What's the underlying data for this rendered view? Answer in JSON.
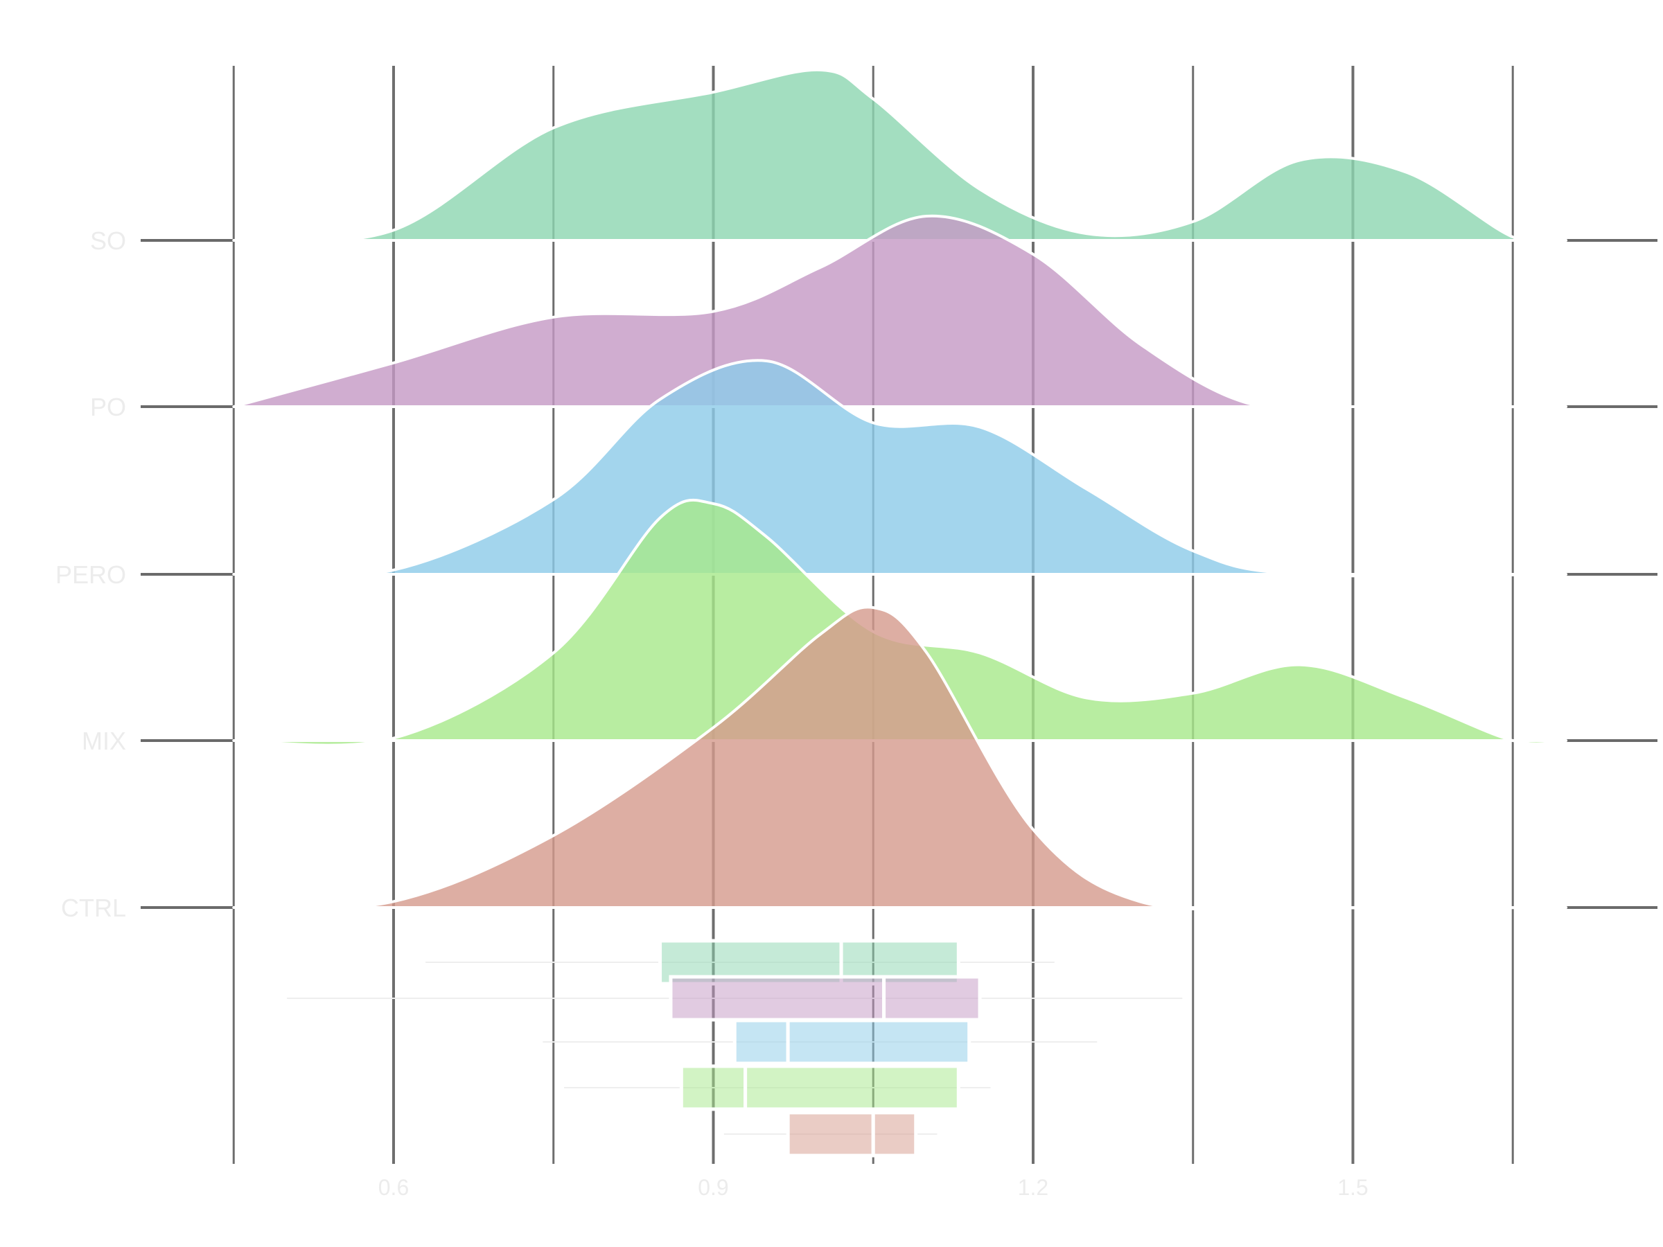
{
  "chart_data": {
    "type": "ridgeline",
    "title": "",
    "xlabel": "",
    "ylabel": "",
    "xlim": [
      0.3,
      1.85
    ],
    "x_major_ticks": [
      0.6,
      0.9,
      1.2,
      1.5
    ],
    "x_tick_labels": [
      "0.6",
      "0.9",
      "1.2",
      "1.5"
    ],
    "x_minor_ticks": [
      0.45,
      0.75,
      1.05,
      1.35,
      1.65
    ],
    "grid": true,
    "categories": [
      "CTRL",
      "MIX",
      "PERO",
      "PO",
      "SO"
    ],
    "series": [
      {
        "category": "CTRL",
        "color": "#d59a8c",
        "x": [
          0.45,
          0.6,
          0.75,
          0.9,
          1.0,
          1.05,
          1.1,
          1.2,
          1.3,
          1.45,
          1.7
        ],
        "density": [
          0.0,
          0.02,
          0.24,
          0.6,
          0.91,
          1.0,
          0.85,
          0.26,
          0.02,
          0.0,
          0.0
        ],
        "box": {
          "whisker_low": 0.91,
          "q1": 0.97,
          "median": 1.05,
          "q3": 1.09,
          "whisker_high": 1.11
        }
      },
      {
        "category": "MIX",
        "color": "#a6e88a",
        "x": [
          0.45,
          0.6,
          0.75,
          0.85,
          0.9,
          0.95,
          1.05,
          1.15,
          1.25,
          1.35,
          1.45,
          1.55,
          1.65,
          1.7
        ],
        "density": [
          0.0,
          0.01,
          0.37,
          0.94,
          1.0,
          0.86,
          0.46,
          0.37,
          0.18,
          0.2,
          0.32,
          0.18,
          0.0,
          0.0
        ],
        "box": {
          "whisker_low": 0.76,
          "q1": 0.87,
          "median": 0.93,
          "q3": 1.13,
          "whisker_high": 1.16
        }
      },
      {
        "category": "PERO",
        "color": "#8ccbe8",
        "x": [
          0.45,
          0.6,
          0.75,
          0.85,
          0.95,
          1.05,
          1.15,
          1.25,
          1.35,
          1.45,
          1.7
        ],
        "density": [
          0.0,
          0.02,
          0.35,
          0.82,
          1.0,
          0.71,
          0.69,
          0.4,
          0.11,
          0.0,
          0.0
        ],
        "box": {
          "whisker_low": 0.74,
          "q1": 0.92,
          "median": 0.97,
          "q3": 1.14,
          "whisker_high": 1.26
        }
      },
      {
        "category": "PO",
        "color": "#c498c4",
        "x": [
          0.45,
          0.6,
          0.75,
          0.9,
          1.0,
          1.1,
          1.2,
          1.3,
          1.4,
          1.5,
          1.7
        ],
        "density": [
          0.0,
          0.23,
          0.47,
          0.5,
          0.73,
          1.0,
          0.8,
          0.33,
          0.02,
          0.0,
          0.0
        ],
        "box": {
          "whisker_low": 0.5,
          "q1": 0.86,
          "median": 1.06,
          "q3": 1.15,
          "whisker_high": 1.34
        }
      },
      {
        "category": "SO",
        "color": "#8cd6b0",
        "x": [
          0.45,
          0.6,
          0.75,
          0.9,
          1.0,
          1.05,
          1.15,
          1.25,
          1.35,
          1.45,
          1.55,
          1.65,
          1.7
        ],
        "density": [
          0.0,
          0.06,
          0.66,
          0.87,
          1.0,
          0.83,
          0.3,
          0.04,
          0.11,
          0.47,
          0.4,
          0.02,
          0.0
        ],
        "box": {
          "whisker_low": 0.63,
          "q1": 0.85,
          "median": 1.02,
          "q3": 1.13,
          "whisker_high": 1.22
        }
      }
    ]
  }
}
